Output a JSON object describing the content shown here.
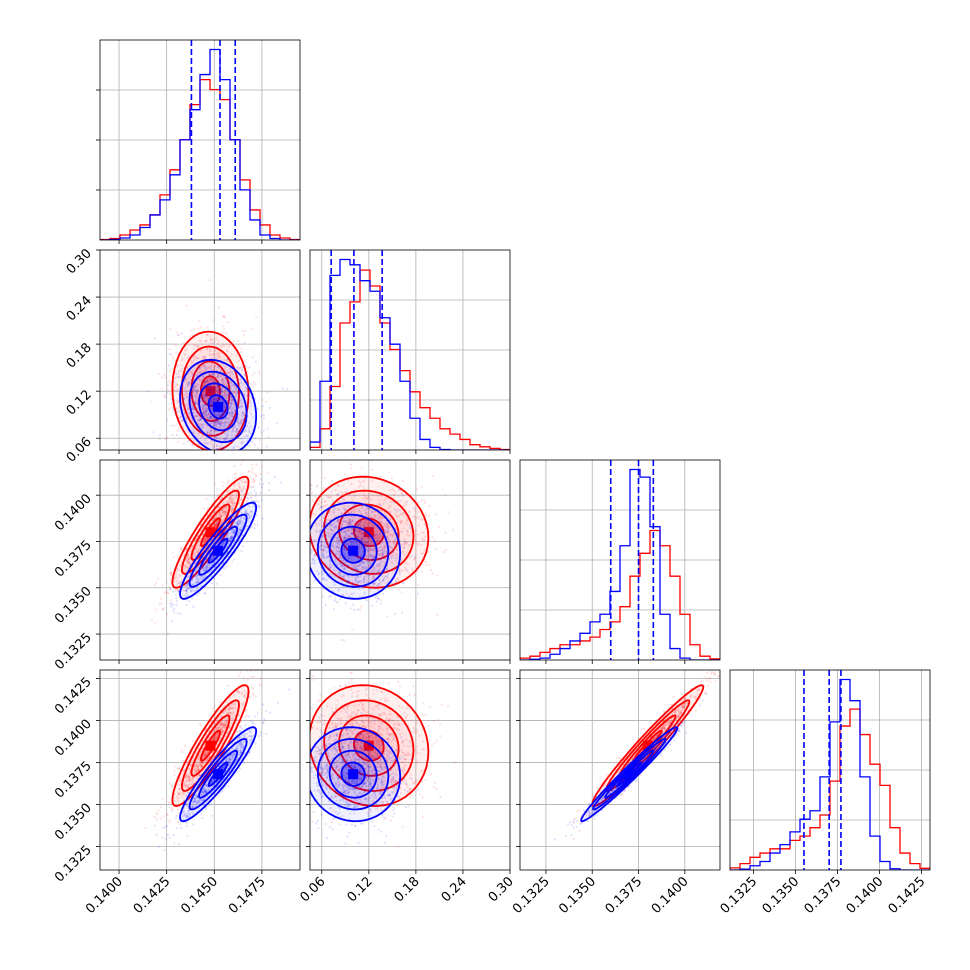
{
  "chart_data": {
    "type": "corner",
    "colors": {
      "series_a": "#ff0000",
      "series_b": "#0000ff"
    },
    "grid": true,
    "variables": [
      {
        "id": "p1",
        "range": [
          0.139,
          0.1495
        ],
        "ticks": [
          "0.1400",
          "0.1425",
          "0.1450",
          "0.1475"
        ],
        "tick_values": [
          0.14,
          0.1425,
          0.145,
          0.1475
        ],
        "label": ""
      },
      {
        "id": "p2",
        "range": [
          0.045,
          0.3
        ],
        "ticks": [
          "0.06",
          "0.12",
          "0.18",
          "0.24",
          "0.30"
        ],
        "tick_values": [
          0.06,
          0.12,
          0.18,
          0.24,
          0.3
        ],
        "label": ""
      },
      {
        "id": "p3",
        "range": [
          0.1311,
          0.1419
        ],
        "ticks": [
          "0.1325",
          "0.1350",
          "0.1375",
          "0.1400"
        ],
        "tick_values": [
          0.1325,
          0.135,
          0.1375,
          0.14
        ],
        "label": ""
      },
      {
        "id": "p4",
        "range": [
          0.1311,
          0.143
        ],
        "ticks": [
          "0.1325",
          "0.1350",
          "0.1375",
          "0.1400",
          "0.1425"
        ],
        "tick_values": [
          0.1325,
          0.135,
          0.1375,
          0.14,
          0.1425
        ],
        "label": ""
      }
    ],
    "quantile_lines": [
      [
        0.1438,
        0.1453,
        0.1461
      ],
      [
        0.072,
        0.101,
        0.137
      ],
      [
        0.136,
        0.1375,
        0.1383
      ],
      [
        0.1355,
        0.137,
        0.1377
      ]
    ],
    "series": [
      {
        "name": "",
        "color": "#ff0000",
        "means": [
          0.1448,
          0.12,
          0.138,
          0.1385
        ],
        "sds": [
          0.001,
          0.038,
          0.0015,
          0.0018
        ],
        "correlations": {
          "0-1": -0.05,
          "0-2": 0.9,
          "0-3": 0.9,
          "1-2": -0.1,
          "1-3": -0.1,
          "2-3": 0.97
        },
        "histograms": [
          {
            "edges": [
              0.139,
              0.1495
            ],
            "counts": [
              0.1,
              0.3,
              1,
              2,
              3,
              5,
              9,
              14,
              20,
              27,
              32,
              30,
              28,
              20,
              12,
              6,
              3,
              1,
              0.4,
              0.1
            ]
          },
          {
            "edges": [
              0.045,
              0.3
            ],
            "counts": [
              0.5,
              4,
              12,
              24,
              28,
              34,
              31,
              24,
              19,
              15,
              11,
              8,
              6,
              4,
              3,
              2,
              1,
              0.6,
              0.3,
              0.1
            ]
          },
          {
            "edges": [
              0.1311,
              0.1419
            ],
            "counts": [
              0.5,
              1,
              2,
              3,
              4,
              4,
              5,
              6,
              8,
              10,
              14,
              22,
              28,
              34,
              30,
              22,
              12,
              4,
              1,
              0.3
            ]
          },
          {
            "edges": [
              0.1311,
              0.143
            ],
            "counts": [
              0.5,
              1.5,
              3,
              4,
              5,
              5,
              7,
              8,
              10,
              13,
              21,
              34,
              38,
              32,
              25,
              20,
              10,
              4,
              1.5,
              0.4
            ]
          }
        ]
      },
      {
        "name": "",
        "color": "#0000ff",
        "means": [
          0.1452,
          0.1,
          0.137,
          0.1368
        ],
        "sds": [
          0.001,
          0.03,
          0.0013,
          0.0014
        ],
        "correlations": {
          "0-1": -0.2,
          "0-2": 0.9,
          "0-3": 0.92,
          "1-2": -0.05,
          "1-3": -0.05,
          "2-3": 0.98
        },
        "histograms": [
          {
            "edges": [
              0.139,
              0.1495
            ],
            "counts": [
              0,
              0.1,
              0.4,
              1,
              2.5,
              5,
              8,
              13,
              20,
              26,
              33,
              38,
              32,
              20,
              10,
              4,
              1,
              0.3,
              0,
              0
            ]
          },
          {
            "edges": [
              0.045,
              0.3
            ],
            "counts": [
              1.5,
              13,
              33,
              36,
              35,
              32,
              30,
              25,
              20,
              13,
              6,
              2,
              0.5,
              0.1,
              0,
              0,
              0,
              0,
              0,
              0
            ]
          },
          {
            "edges": [
              0.1311,
              0.1419
            ],
            "counts": [
              0,
              0.2,
              0.5,
              1.5,
              3,
              5,
              7,
              10,
              12,
              18,
              30,
              50,
              48,
              35,
              12,
              3,
              0.5,
              0,
              0,
              0
            ]
          },
          {
            "edges": [
              0.1311,
              0.143
            ],
            "counts": [
              0,
              0.2,
              1,
              2,
              4,
              6,
              9,
              12,
              14,
              22,
              35,
              45,
              40,
              22,
              8,
              2,
              0.3,
              0,
              0,
              0
            ]
          }
        ]
      }
    ]
  }
}
